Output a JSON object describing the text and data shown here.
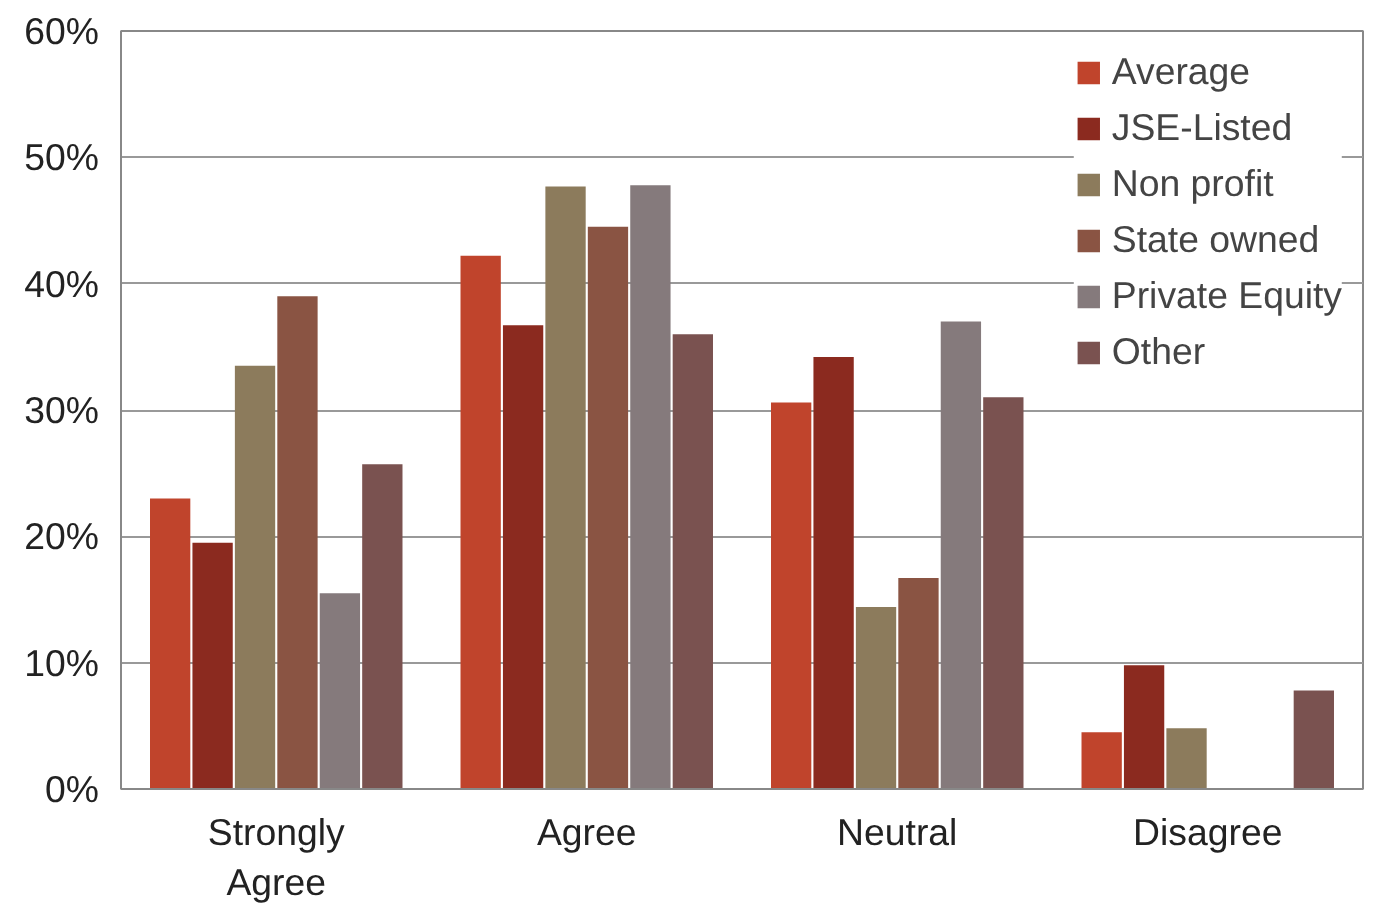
{
  "chart_data": {
    "type": "bar",
    "categories": [
      "Strongly Agree",
      "Agree",
      "Neutral",
      "Disagree"
    ],
    "series": [
      {
        "name": "Average",
        "color": "#c0442c",
        "values": [
          23,
          42.2,
          30.6,
          4.5
        ]
      },
      {
        "name": "JSE-Listed",
        "color": "#8b2a1f",
        "values": [
          19.5,
          36.7,
          34.2,
          9.8
        ]
      },
      {
        "name": "Non profit",
        "color": "#8c7b5c",
        "values": [
          33.5,
          47.7,
          14.4,
          4.8
        ]
      },
      {
        "name": "State owned",
        "color": "#8a5443",
        "values": [
          39,
          44.5,
          16.7,
          null
        ]
      },
      {
        "name": "Private Equity",
        "color": "#857a7c",
        "values": [
          15.5,
          47.8,
          37,
          null
        ]
      },
      {
        "name": "Other",
        "color": "#7a5250",
        "values": [
          25.7,
          36,
          31,
          7.8
        ]
      }
    ],
    "ylim": [
      0,
      60
    ],
    "yticks": [
      {
        "value": 0,
        "label": "0%"
      },
      {
        "value": 10,
        "label": "10%"
      },
      {
        "value": 20,
        "label": "20%"
      },
      {
        "value": 30,
        "label": "30%"
      },
      {
        "value": 40,
        "label": "40%"
      },
      {
        "value": 50,
        "label": "50%"
      },
      {
        "value": 60,
        "label": "60%"
      }
    ],
    "grid": "y",
    "legend": "top right"
  }
}
